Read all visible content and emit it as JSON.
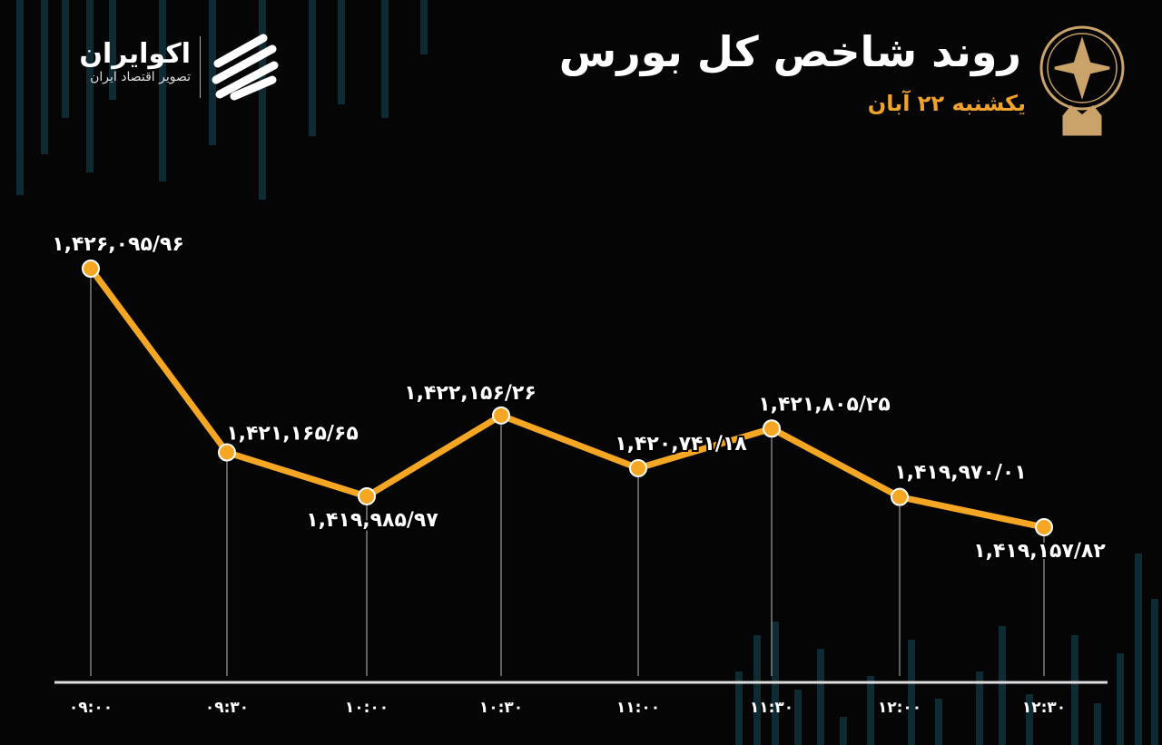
{
  "header": {
    "title": "روند شاخص کل بورس",
    "subtitle": "یکشنبه ۲۲ آبان",
    "brand_name": "اکوایران",
    "brand_tagline": "تصویر اقتصاد ایران",
    "emblem": "tehran-stock-exchange-logo"
  },
  "colors": {
    "line": "#f5a623",
    "point": "#f5a623",
    "accent": "#f0a32a",
    "background": "#050505",
    "decor_bars": "#0e2a33"
  },
  "chart_data": {
    "type": "line",
    "title": "روند شاخص کل بورس",
    "xlabel": "",
    "ylabel": "",
    "grid": false,
    "categories": [
      "۰۹:۰۰",
      "۰۹:۳۰",
      "۱۰:۰۰",
      "۱۰:۳۰",
      "۱۱:۰۰",
      "۱۱:۳۰",
      "۱۲:۰۰",
      "۱۲:۳۰"
    ],
    "values": [
      1426095.96,
      1421165.65,
      1419985.97,
      1422156.26,
      1420741.18,
      1421805.25,
      1419970.01,
      1419157.82
    ],
    "data_labels": [
      "۱,۴۲۶,۰۹۵/۹۶",
      "۱,۴۲۱,۱۶۵/۶۵",
      "۱,۴۱۹,۹۸۵/۹۷",
      "۱,۴۲۲,۱۵۶/۲۶",
      "۱,۴۲۰,۷۴۱/۱۸",
      "۱,۴۲۱,۸۰۵/۲۵",
      "۱,۴۱۹,۹۷۰/۰۱",
      "۱,۴۱۹,۱۵۷/۸۲"
    ]
  }
}
